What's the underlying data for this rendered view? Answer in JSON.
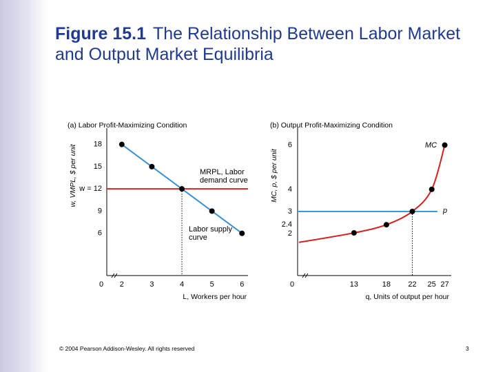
{
  "header": {
    "title_bold": "Figure 15.1",
    "title": "The Relationship Between Labor Market and Output Market Equilibria"
  },
  "chart_data": [
    {
      "type": "line",
      "title": "(a) Labor Profit-Maximizing Condition",
      "x_label": "L, Workers per hour",
      "y_label": "w, VMPL, $ per unit",
      "origin_label": "0",
      "axis_break": true,
      "xlim": [
        1.5,
        6.2
      ],
      "ylim": [
        0.3,
        20.2
      ],
      "xticks": [
        2,
        3,
        4,
        5,
        6
      ],
      "yticks": [
        6,
        9,
        {
          "value": 12,
          "label": "w = 12"
        },
        15,
        18
      ],
      "series": [
        {
          "name": "MRPL, Labor demand curve",
          "color": "#3a8fd0",
          "x": [
            2,
            3,
            4,
            5,
            6
          ],
          "values": [
            18,
            15,
            12,
            9,
            6
          ],
          "markers": [
            true,
            true,
            true,
            true,
            true
          ],
          "smooth": false
        },
        {
          "name": "Labor supply curve",
          "color": "#e0201b",
          "value": 12
        }
      ],
      "equilibrium": {
        "x": 4,
        "y": 12
      }
    },
    {
      "type": "line",
      "title": "(b) Output Profit-Maximizing Condition",
      "x_label": "q, Units of output per hour",
      "y_label": "MC, p, $ per unit",
      "origin_label": "0",
      "axis_break": true,
      "xlim": [
        4.3,
        28
      ],
      "ylim": [
        0.1,
        6.8
      ],
      "xticks": [
        13,
        18,
        22,
        25,
        27
      ],
      "yticks": [
        2,
        2.4,
        3,
        4,
        6
      ],
      "series": [
        {
          "name": "MC",
          "color": "#d81e1e",
          "x": [
            4.5,
            13,
            18,
            22,
            25,
            27
          ],
          "values": [
            1.6,
            2.03,
            2.4,
            3,
            4,
            6
          ],
          "markers": [
            false,
            true,
            true,
            true,
            true,
            true
          ],
          "smooth": true
        },
        {
          "name": "p",
          "color": "#3a9ad0",
          "value": 3
        }
      ],
      "equilibrium": {
        "x": 22,
        "y": 3
      }
    }
  ],
  "footer": {
    "copyright": "© 2004 Pearson Addison-Wesley. All rights reserved",
    "page": "3"
  }
}
